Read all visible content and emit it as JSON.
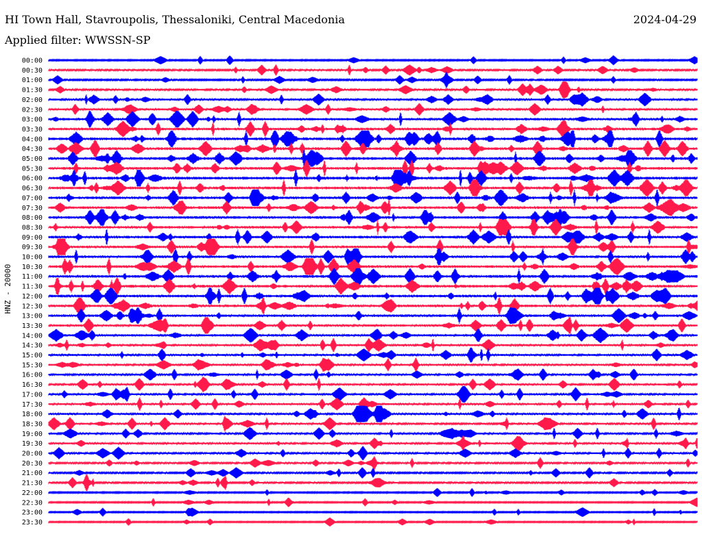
{
  "header": {
    "title": "HI Town Hall, Stavroupolis, Thessaloniki, Central Macedonia",
    "date": "2024-04-29",
    "filter": "Applied filter: WWSSN-SP"
  },
  "chart_data": {
    "type": "line",
    "ylabel": "HNZ - 20000",
    "rows": [
      "00:00",
      "00:30",
      "01:00",
      "01:30",
      "02:00",
      "02:30",
      "03:00",
      "03:30",
      "04:00",
      "04:30",
      "05:00",
      "05:30",
      "06:00",
      "06:30",
      "07:00",
      "07:30",
      "08:00",
      "08:30",
      "09:00",
      "09:30",
      "10:00",
      "10:30",
      "11:00",
      "11:30",
      "12:00",
      "12:30",
      "13:00",
      "13:30",
      "14:00",
      "14:30",
      "15:00",
      "15:30",
      "16:00",
      "16:30",
      "17:00",
      "17:30",
      "18:00",
      "18:30",
      "19:00",
      "19:30",
      "20:00",
      "20:30",
      "21:00",
      "21:30",
      "22:00",
      "22:30",
      "23:00",
      "23:30"
    ],
    "colors": [
      "#0000ff",
      "#ff1a4b"
    ],
    "activity_by_row": [
      0.2,
      0.35,
      0.25,
      0.4,
      0.5,
      0.5,
      0.7,
      0.75,
      0.9,
      0.85,
      0.9,
      0.85,
      0.9,
      0.85,
      0.85,
      0.8,
      0.8,
      0.75,
      0.75,
      0.7,
      0.75,
      0.8,
      0.85,
      0.85,
      0.8,
      0.75,
      0.7,
      0.65,
      0.6,
      0.55,
      0.5,
      0.5,
      0.45,
      0.45,
      0.5,
      0.5,
      0.5,
      0.45,
      0.45,
      0.45,
      0.4,
      0.35,
      0.3,
      0.3,
      0.2,
      0.2,
      0.15,
      0.15
    ]
  }
}
